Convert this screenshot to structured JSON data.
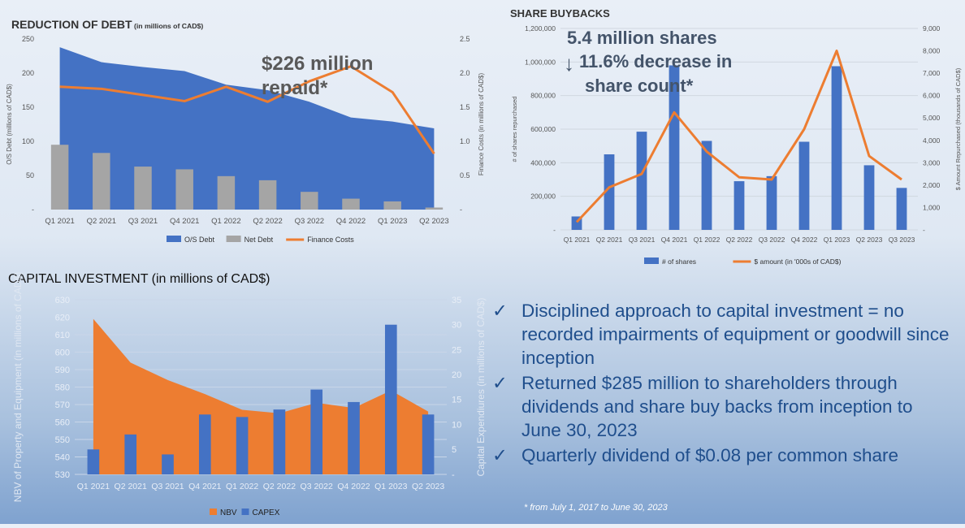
{
  "bullets": {
    "check_glyph": "✓",
    "items": [
      "Disciplined approach to capital investment = no recorded impairments of equipment or goodwill since inception",
      "Returned $285 million to shareholders through dividends and share buy backs from inception to June 30, 2023",
      "Quarterly dividend of $0.08 per common share"
    ]
  },
  "footnote": "* from July 1, 2017 to June 30, 2023",
  "chart_data": [
    {
      "id": "debt",
      "type": "area",
      "title": "REDUCTION OF DEBT",
      "title_suffix": "(in millions of CAD$)",
      "ylabel": "O/S Debt (millions of CAD$)",
      "y2label": "Finance Costs (in millions of CAD$)",
      "ylim": [
        0,
        250
      ],
      "y2lim": [
        0,
        2.5
      ],
      "yticks": [
        "-",
        "50",
        "100",
        "150",
        "200",
        "250"
      ],
      "y2ticks": [
        "-",
        "0.5",
        "1.0",
        "1.5",
        "2.0",
        "2.5"
      ],
      "categories": [
        "Q1 2021",
        "Q2 2021",
        "Q3 2021",
        "Q4 2021",
        "Q1 2022",
        "Q2 2022",
        "Q3 2022",
        "Q4 2022",
        "Q1 2023",
        "Q2 2023"
      ],
      "series": [
        {
          "name": "O/S Debt",
          "kind": "area",
          "axis": "left",
          "color": "#4472c4",
          "values": [
            238,
            216,
            209,
            203,
            183,
            175,
            158,
            135,
            129,
            119
          ]
        },
        {
          "name": "Net Debt",
          "kind": "bar",
          "axis": "left",
          "color": "#a5a5a5",
          "values": [
            95,
            83,
            63,
            59,
            49,
            43,
            26,
            16,
            12,
            3
          ]
        },
        {
          "name": "Finance Costs",
          "kind": "line",
          "axis": "right",
          "color": "#ed7d31",
          "values": [
            1.8,
            1.77,
            1.68,
            1.59,
            1.8,
            1.58,
            1.88,
            2.1,
            1.72,
            0.82
          ]
        }
      ],
      "legend_position": "bottom",
      "annotation": {
        "line1": "$226 million",
        "line2": "repaid*"
      }
    },
    {
      "id": "buyback",
      "type": "bar",
      "title": "SHARE BUYBACKS",
      "ylabel": "# of shares repurchased",
      "y2label": "$ Amount Repurchased (thousands of CAD$)",
      "ylim": [
        0,
        1200000
      ],
      "y2lim": [
        0,
        9000
      ],
      "yticks": [
        "-",
        "200,000",
        "400,000",
        "600,000",
        "800,000",
        "1,000,000",
        "1,200,000"
      ],
      "y2ticks": [
        "-",
        "1,000",
        "2,000",
        "3,000",
        "4,000",
        "5,000",
        "6,000",
        "7,000",
        "8,000",
        "9,000"
      ],
      "categories": [
        "Q1 2021",
        "Q2 2021",
        "Q3 2021",
        "Q4 2021",
        "Q1 2022",
        "Q2 2022",
        "Q3 2022",
        "Q4 2022",
        "Q1 2023",
        "Q2 2023",
        "Q3 2023"
      ],
      "series": [
        {
          "name": "# of shares",
          "kind": "bar",
          "axis": "left",
          "color": "#4472c4",
          "values": [
            80000,
            450000,
            585000,
            980000,
            530000,
            290000,
            320000,
            525000,
            975000,
            385000,
            250000
          ]
        },
        {
          "name": "$ amount (in '000s of CAD$)",
          "kind": "line",
          "axis": "right",
          "color": "#ed7d31",
          "values": [
            350,
            1900,
            2500,
            5250,
            3500,
            2350,
            2250,
            4500,
            8000,
            3300,
            2250
          ]
        }
      ],
      "legend_position": "bottom",
      "annotation": {
        "line1": "5.4 million shares",
        "line2": "11.6% decrease in",
        "line3": "share count*",
        "arrow": "↓"
      }
    },
    {
      "id": "capex",
      "type": "area",
      "title": "CAPITAL INVESTMENT (in millions of CAD$)",
      "ylabel": "NBV of Property and Equipment (in millions of CAD$)",
      "y2label": "Capital Expendiures (in millions of CAD$)",
      "ylim": [
        530,
        630
      ],
      "y2lim": [
        0,
        35
      ],
      "yticks": [
        "530",
        "540",
        "550",
        "560",
        "570",
        "580",
        "590",
        "600",
        "610",
        "620",
        "630"
      ],
      "y2ticks": [
        "-",
        "5",
        "10",
        "15",
        "20",
        "25",
        "30",
        "35"
      ],
      "categories": [
        "Q1 2021",
        "Q2 2021",
        "Q3 2021",
        "Q4 2021",
        "Q1 2022",
        "Q2 2022",
        "Q3 2022",
        "Q4 2022",
        "Q1 2023",
        "Q2 2023"
      ],
      "series": [
        {
          "name": "NBV",
          "kind": "area",
          "axis": "left",
          "color": "#ed7d31",
          "values": [
            619,
            594,
            584,
            576,
            567,
            565,
            571,
            568,
            578,
            566
          ]
        },
        {
          "name": "CAPEX",
          "kind": "bar",
          "axis": "right",
          "color": "#4472c4",
          "values": [
            5,
            8,
            4,
            12,
            11.5,
            13,
            17,
            14.5,
            30,
            12
          ]
        }
      ],
      "legend_position": "bottom"
    }
  ]
}
